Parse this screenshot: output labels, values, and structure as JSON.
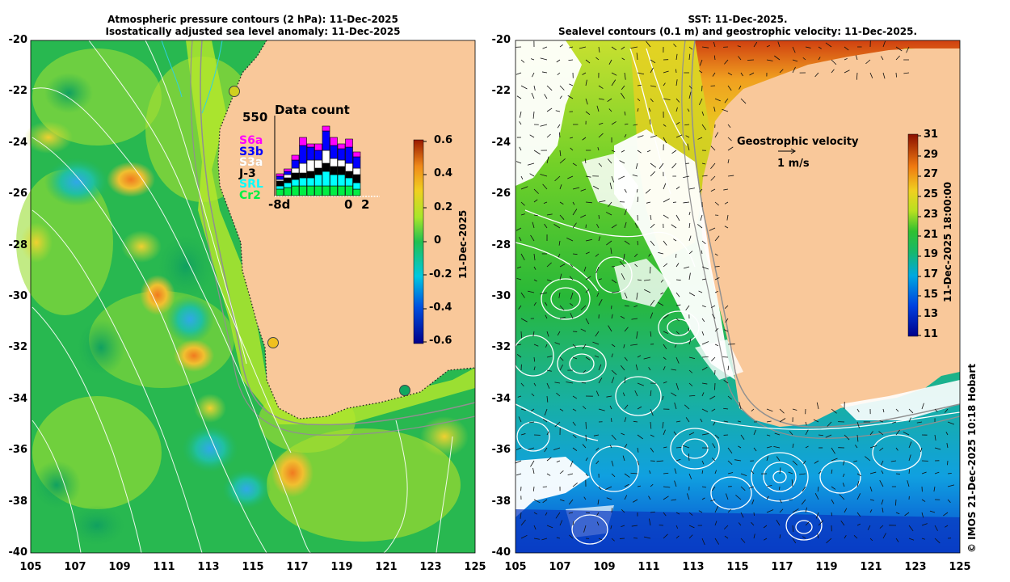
{
  "left_panel": {
    "title_line1": "Atmospheric pressure contours (2 hPa): 11-Dec-2025",
    "title_line2": "Isostatically adjusted sea level anomaly: 11-Dec-2025",
    "colorbar_ticks": [
      "0.6",
      "0.4",
      "0.2",
      "0",
      "-0.2",
      "-0.4",
      "-0.6"
    ],
    "colorbar_label": "11-Dec-2025",
    "histogram": {
      "title": "Data count",
      "ymax_label": "550",
      "x_labels": [
        "-8d",
        "0",
        "2"
      ],
      "legend": [
        {
          "label": "S6a",
          "color": "#ff00ff"
        },
        {
          "label": "S3b",
          "color": "#0000ff"
        },
        {
          "label": "S3a",
          "color": "#ffffff"
        },
        {
          "label": "J-3",
          "color": "#000000"
        },
        {
          "label": "SRL",
          "color": "#00ffff"
        },
        {
          "label": "Cr2",
          "color": "#00ee44"
        }
      ]
    }
  },
  "right_panel": {
    "title_line1": "SST: 11-Dec-2025.",
    "title_line2": "Sealevel contours (0.1 m) and geostrophic velocity: 11-Dec-2025.",
    "colorbar_ticks": [
      "31",
      "29",
      "27",
      "25",
      "23",
      "21",
      "19",
      "17",
      "15",
      "13",
      "11"
    ],
    "colorbar_label": "11-Dec-2025 18:00:00",
    "velocity_label": "Geostrophic velocity",
    "velocity_scale": "1 m/s"
  },
  "y_ticks": [
    "-20",
    "-22",
    "-24",
    "-26",
    "-28",
    "-30",
    "-32",
    "-34",
    "-36",
    "-38",
    "-40"
  ],
  "x_ticks": [
    "105",
    "107",
    "109",
    "111",
    "113",
    "115",
    "117",
    "119",
    "121",
    "123",
    "125"
  ],
  "credit": "© IMOS 21-Dec-2025 10:18 Hobart",
  "colors": {
    "land": "#f9c89a"
  }
}
